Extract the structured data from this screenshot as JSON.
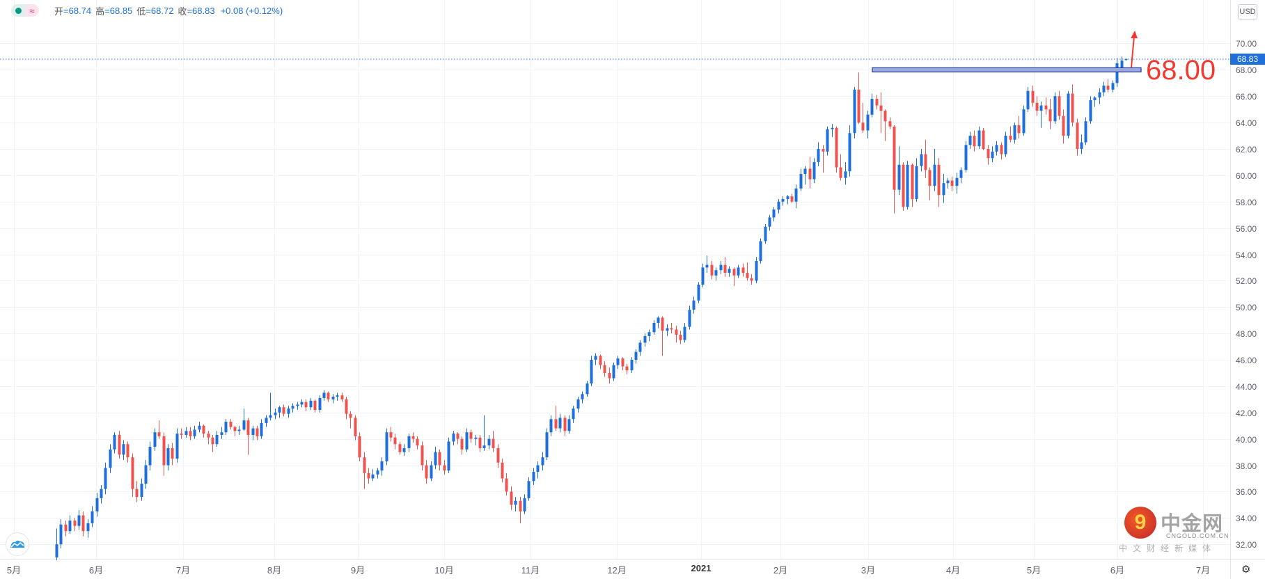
{
  "legend": {
    "open_label": "开",
    "open": "=68.74",
    "high_label": "高",
    "high": "=68.85",
    "low_label": "低",
    "low": "=68.72",
    "close_label": "收",
    "close": "=68.83",
    "change": "+0.08 (+0.12%)",
    "icons": [
      "status-dot-icon",
      "approx-icon"
    ]
  },
  "currency": "USD",
  "last_price": "68.83",
  "annotation": {
    "text": "68.00",
    "level": 68.0,
    "color": "#f23b30"
  },
  "watermark": {
    "name": "中金网",
    "url": "CNGOLD.COM.CN",
    "tagline": "中文财经新媒体"
  },
  "colors": {
    "up": "#1e6fd9",
    "down": "#ef5350",
    "grid": "#f0f3fa",
    "zone_fill": "#9fa8da",
    "zone_border": "#1a3a9a"
  },
  "chart_data": {
    "type": "candlestick",
    "ylim": [
      30.9,
      73.3
    ],
    "y_ticks": [
      "32.00",
      "34.00",
      "36.00",
      "38.00",
      "40.00",
      "42.00",
      "44.00",
      "46.00",
      "48.00",
      "50.00",
      "52.00",
      "54.00",
      "56.00",
      "58.00",
      "60.00",
      "62.00",
      "64.00",
      "66.00",
      "68.00",
      "70.00"
    ],
    "x_ticks": [
      "5月",
      "6月",
      "7月",
      "8月",
      "9月",
      "10月",
      "11月",
      "12月",
      "2021",
      "2月",
      "3月",
      "4月",
      "5月",
      "6月",
      "7月"
    ],
    "grid": true,
    "candles_ohlc": [
      [
        31.0,
        33.2,
        30.8,
        32.0
      ],
      [
        32.0,
        33.9,
        31.7,
        33.5
      ],
      [
        33.5,
        33.8,
        32.6,
        33.0
      ],
      [
        33.0,
        34.2,
        32.8,
        33.8
      ],
      [
        33.8,
        34.0,
        33.0,
        33.4
      ],
      [
        33.4,
        34.6,
        33.1,
        34.2
      ],
      [
        34.2,
        34.5,
        32.6,
        33.0
      ],
      [
        33.0,
        33.9,
        32.5,
        33.6
      ],
      [
        33.6,
        34.9,
        33.3,
        34.5
      ],
      [
        34.5,
        35.9,
        34.1,
        35.5
      ],
      [
        35.5,
        36.5,
        35.1,
        36.2
      ],
      [
        36.2,
        38.2,
        35.8,
        37.8
      ],
      [
        37.8,
        39.6,
        37.4,
        39.2
      ],
      [
        39.2,
        40.5,
        38.9,
        40.3
      ],
      [
        40.3,
        40.6,
        38.5,
        38.8
      ],
      [
        38.8,
        39.9,
        38.4,
        39.6
      ],
      [
        39.6,
        39.8,
        38.2,
        38.6
      ],
      [
        38.6,
        38.9,
        35.6,
        36.2
      ],
      [
        36.2,
        36.8,
        35.2,
        35.6
      ],
      [
        35.6,
        37.0,
        35.3,
        36.6
      ],
      [
        36.6,
        38.4,
        36.2,
        38.0
      ],
      [
        38.0,
        39.8,
        37.6,
        39.4
      ],
      [
        39.4,
        40.8,
        39.1,
        40.5
      ],
      [
        40.5,
        41.4,
        40.0,
        40.2
      ],
      [
        40.2,
        40.5,
        37.2,
        38.0
      ],
      [
        38.0,
        39.6,
        37.6,
        39.3
      ],
      [
        39.3,
        39.7,
        38.0,
        38.5
      ],
      [
        38.5,
        40.8,
        38.2,
        40.4
      ],
      [
        40.4,
        40.8,
        40.0,
        40.3
      ],
      [
        40.3,
        40.9,
        40.1,
        40.6
      ],
      [
        40.6,
        40.9,
        39.9,
        40.2
      ],
      [
        40.2,
        41.0,
        40.0,
        40.7
      ],
      [
        40.7,
        41.3,
        40.5,
        41.0
      ],
      [
        41.0,
        41.1,
        40.1,
        40.4
      ],
      [
        40.4,
        40.6,
        39.6,
        40.1
      ],
      [
        40.1,
        40.3,
        39.0,
        39.6
      ],
      [
        39.6,
        40.6,
        39.4,
        40.3
      ],
      [
        40.3,
        40.9,
        40.0,
        40.5
      ],
      [
        40.5,
        41.5,
        40.3,
        41.3
      ],
      [
        41.3,
        41.5,
        40.7,
        40.9
      ],
      [
        40.9,
        41.0,
        40.2,
        40.6
      ],
      [
        40.6,
        41.0,
        40.3,
        40.7
      ],
      [
        40.7,
        42.3,
        40.6,
        41.4
      ],
      [
        41.4,
        41.6,
        38.8,
        40.3
      ],
      [
        40.3,
        41.0,
        39.9,
        40.8
      ],
      [
        40.8,
        41.0,
        39.9,
        40.2
      ],
      [
        40.2,
        41.5,
        40.0,
        41.2
      ],
      [
        41.2,
        41.8,
        40.9,
        41.6
      ],
      [
        41.6,
        43.5,
        41.4,
        41.8
      ],
      [
        41.8,
        42.3,
        41.5,
        42.0
      ],
      [
        42.0,
        42.5,
        41.6,
        42.4
      ],
      [
        42.4,
        42.6,
        41.7,
        41.9
      ],
      [
        41.9,
        42.5,
        41.6,
        42.3
      ],
      [
        42.3,
        42.7,
        42.0,
        42.5
      ],
      [
        42.5,
        42.8,
        42.2,
        42.6
      ],
      [
        42.6,
        43.0,
        42.4,
        42.8
      ],
      [
        42.8,
        43.0,
        42.1,
        42.4
      ],
      [
        42.4,
        43.1,
        42.2,
        42.9
      ],
      [
        42.9,
        43.0,
        42.0,
        42.2
      ],
      [
        42.2,
        43.3,
        42.0,
        43.1
      ],
      [
        43.1,
        43.7,
        42.9,
        43.5
      ],
      [
        43.5,
        43.6,
        42.8,
        43.0
      ],
      [
        43.0,
        43.4,
        42.7,
        43.2
      ],
      [
        43.2,
        43.5,
        42.9,
        43.3
      ],
      [
        43.3,
        43.5,
        42.8,
        43.0
      ],
      [
        43.0,
        43.2,
        41.5,
        41.9
      ],
      [
        41.9,
        42.1,
        40.8,
        41.6
      ],
      [
        41.6,
        41.8,
        39.9,
        40.2
      ],
      [
        40.2,
        40.5,
        38.3,
        38.6
      ],
      [
        38.6,
        39.0,
        36.2,
        37.4
      ],
      [
        37.4,
        37.8,
        36.6,
        37.0
      ],
      [
        37.0,
        37.7,
        36.8,
        37.3
      ],
      [
        37.3,
        37.8,
        37.0,
        37.6
      ],
      [
        37.6,
        38.6,
        37.2,
        38.3
      ],
      [
        38.3,
        40.8,
        38.0,
        40.5
      ],
      [
        40.5,
        40.9,
        39.8,
        40.1
      ],
      [
        40.1,
        40.4,
        39.2,
        39.6
      ],
      [
        39.6,
        39.8,
        38.8,
        39.0
      ],
      [
        39.0,
        39.6,
        38.7,
        39.3
      ],
      [
        39.3,
        40.4,
        39.0,
        40.2
      ],
      [
        40.2,
        40.5,
        39.7,
        40.0
      ],
      [
        40.0,
        40.2,
        39.2,
        39.5
      ],
      [
        39.5,
        39.8,
        37.6,
        38.0
      ],
      [
        38.0,
        38.4,
        36.6,
        37.0
      ],
      [
        37.0,
        38.3,
        36.8,
        38.0
      ],
      [
        38.0,
        39.4,
        37.7,
        39.0
      ],
      [
        39.0,
        39.2,
        37.6,
        38.0
      ],
      [
        38.0,
        38.4,
        37.3,
        37.6
      ],
      [
        37.6,
        40.1,
        37.4,
        39.8
      ],
      [
        39.8,
        40.6,
        39.5,
        40.4
      ],
      [
        40.4,
        40.5,
        39.6,
        40.0
      ],
      [
        40.0,
        40.2,
        38.8,
        39.2
      ],
      [
        39.2,
        40.8,
        39.0,
        40.5
      ],
      [
        40.5,
        40.7,
        39.7,
        40.0
      ],
      [
        40.0,
        40.3,
        39.5,
        40.1
      ],
      [
        40.1,
        40.3,
        39.0,
        39.3
      ],
      [
        39.3,
        41.8,
        39.1,
        39.5
      ],
      [
        39.5,
        40.3,
        39.2,
        40.0
      ],
      [
        40.0,
        40.6,
        39.0,
        39.3
      ],
      [
        39.3,
        39.6,
        37.8,
        38.2
      ],
      [
        38.2,
        38.5,
        36.7,
        37.0
      ],
      [
        37.0,
        37.4,
        35.7,
        36.0
      ],
      [
        36.0,
        36.4,
        34.6,
        35.0
      ],
      [
        35.0,
        35.6,
        34.5,
        35.3
      ],
      [
        35.3,
        35.6,
        33.6,
        34.5
      ],
      [
        34.5,
        35.8,
        34.3,
        35.5
      ],
      [
        35.5,
        37.1,
        35.3,
        36.8
      ],
      [
        36.8,
        37.8,
        36.5,
        37.5
      ],
      [
        37.5,
        38.3,
        37.0,
        38.0
      ],
      [
        38.0,
        39.0,
        37.6,
        38.6
      ],
      [
        38.6,
        40.8,
        38.4,
        40.5
      ],
      [
        40.5,
        41.8,
        40.2,
        41.5
      ],
      [
        41.5,
        42.5,
        40.6,
        40.8
      ],
      [
        40.8,
        41.9,
        40.5,
        41.6
      ],
      [
        41.6,
        41.8,
        40.2,
        40.6
      ],
      [
        40.6,
        41.8,
        40.4,
        41.5
      ],
      [
        41.5,
        42.5,
        41.2,
        42.3
      ],
      [
        42.3,
        43.2,
        42.0,
        43.0
      ],
      [
        43.0,
        43.6,
        42.7,
        43.4
      ],
      [
        43.4,
        44.4,
        43.2,
        44.2
      ],
      [
        44.2,
        46.3,
        44.0,
        46.0
      ],
      [
        46.0,
        46.5,
        45.6,
        46.3
      ],
      [
        46.3,
        46.4,
        45.3,
        45.6
      ],
      [
        45.6,
        45.9,
        44.7,
        45.0
      ],
      [
        45.0,
        45.4,
        44.2,
        44.6
      ],
      [
        44.6,
        45.8,
        44.4,
        45.6
      ],
      [
        45.6,
        46.3,
        45.3,
        46.1
      ],
      [
        46.1,
        46.2,
        45.2,
        45.5
      ],
      [
        45.5,
        45.7,
        44.9,
        45.2
      ],
      [
        45.2,
        46.2,
        45.0,
        46.0
      ],
      [
        46.0,
        46.8,
        45.7,
        46.6
      ],
      [
        46.6,
        47.5,
        46.3,
        47.3
      ],
      [
        47.3,
        48.0,
        47.0,
        47.8
      ],
      [
        47.8,
        48.3,
        47.4,
        48.1
      ],
      [
        48.1,
        49.0,
        47.9,
        48.8
      ],
      [
        48.8,
        49.3,
        48.4,
        49.2
      ],
      [
        49.2,
        49.3,
        46.3,
        48.2
      ],
      [
        48.2,
        48.7,
        47.8,
        48.4
      ],
      [
        48.4,
        48.8,
        48.0,
        48.3
      ],
      [
        48.3,
        48.6,
        47.3,
        47.9
      ],
      [
        47.9,
        48.2,
        47.2,
        47.5
      ],
      [
        47.5,
        48.8,
        47.3,
        48.5
      ],
      [
        48.5,
        50.1,
        48.3,
        49.8
      ],
      [
        49.8,
        50.8,
        49.5,
        50.5
      ],
      [
        50.5,
        51.9,
        50.3,
        51.7
      ],
      [
        51.7,
        53.3,
        51.5,
        53.0
      ],
      [
        53.0,
        53.9,
        52.6,
        53.2
      ],
      [
        53.2,
        53.5,
        52.1,
        52.4
      ],
      [
        52.4,
        53.0,
        52.0,
        52.8
      ],
      [
        52.8,
        53.5,
        52.5,
        53.2
      ],
      [
        53.2,
        53.8,
        52.3,
        52.6
      ],
      [
        52.6,
        53.1,
        52.3,
        52.9
      ],
      [
        52.9,
        53.0,
        51.6,
        52.4
      ],
      [
        52.4,
        53.2,
        52.2,
        53.0
      ],
      [
        53.0,
        53.3,
        52.3,
        52.6
      ],
      [
        52.6,
        53.4,
        52.0,
        52.2
      ],
      [
        52.2,
        52.5,
        51.7,
        52.0
      ],
      [
        52.0,
        53.8,
        51.8,
        53.5
      ],
      [
        53.5,
        55.2,
        53.3,
        55.0
      ],
      [
        55.0,
        56.3,
        54.8,
        56.1
      ],
      [
        56.1,
        57.0,
        55.8,
        56.8
      ],
      [
        56.8,
        57.6,
        56.5,
        57.4
      ],
      [
        57.4,
        58.2,
        57.1,
        58.0
      ],
      [
        58.0,
        58.4,
        57.7,
        58.2
      ],
      [
        58.2,
        58.5,
        57.8,
        58.4
      ],
      [
        58.4,
        58.6,
        57.9,
        58.0
      ],
      [
        58.0,
        59.3,
        57.5,
        59.0
      ],
      [
        59.0,
        60.5,
        58.8,
        60.1
      ],
      [
        60.1,
        60.7,
        59.3,
        60.5
      ],
      [
        60.5,
        61.4,
        59.0,
        59.7
      ],
      [
        59.7,
        61.3,
        59.4,
        61.0
      ],
      [
        61.0,
        62.5,
        60.7,
        62.0
      ],
      [
        62.0,
        62.3,
        60.2,
        61.8
      ],
      [
        61.8,
        63.7,
        61.5,
        63.5
      ],
      [
        63.5,
        63.9,
        62.9,
        63.6
      ],
      [
        63.6,
        63.7,
        60.2,
        60.6
      ],
      [
        60.6,
        61.6,
        59.6,
        59.8
      ],
      [
        59.8,
        61.0,
        59.3,
        60.3
      ],
      [
        60.3,
        63.8,
        59.9,
        63.2
      ],
      [
        63.2,
        66.7,
        62.8,
        66.5
      ],
      [
        66.5,
        67.8,
        63.9,
        64.0
      ],
      [
        64.0,
        65.5,
        63.2,
        63.4
      ],
      [
        63.4,
        64.9,
        62.8,
        64.6
      ],
      [
        64.6,
        66.2,
        64.4,
        65.8
      ],
      [
        65.8,
        66.1,
        65.0,
        65.3
      ],
      [
        65.3,
        66.3,
        63.2,
        64.9
      ],
      [
        64.9,
        65.0,
        62.6,
        64.1
      ],
      [
        64.1,
        64.4,
        63.5,
        63.7
      ],
      [
        63.7,
        63.8,
        57.1,
        58.9
      ],
      [
        58.9,
        62.2,
        58.5,
        60.8
      ],
      [
        60.8,
        61.0,
        57.3,
        57.6
      ],
      [
        57.6,
        61.1,
        57.4,
        60.8
      ],
      [
        60.8,
        60.9,
        57.6,
        58.2
      ],
      [
        58.2,
        61.3,
        58.0,
        60.7
      ],
      [
        60.7,
        62.0,
        60.3,
        61.6
      ],
      [
        61.6,
        62.7,
        59.8,
        60.4
      ],
      [
        60.4,
        60.6,
        58.1,
        59.2
      ],
      [
        59.2,
        62.0,
        58.8,
        60.8
      ],
      [
        60.8,
        61.3,
        57.6,
        58.5
      ],
      [
        58.5,
        60.1,
        57.9,
        59.4
      ],
      [
        59.4,
        59.8,
        59.0,
        59.6
      ],
      [
        59.6,
        59.9,
        58.8,
        59.2
      ],
      [
        59.2,
        60.2,
        58.6,
        59.8
      ],
      [
        59.8,
        60.6,
        59.4,
        60.4
      ],
      [
        60.4,
        62.6,
        60.2,
        62.3
      ],
      [
        62.3,
        63.3,
        62.0,
        63.0
      ],
      [
        63.0,
        63.4,
        61.8,
        62.2
      ],
      [
        62.2,
        63.7,
        62.0,
        63.4
      ],
      [
        63.4,
        63.6,
        61.9,
        62.0
      ],
      [
        62.0,
        62.3,
        60.8,
        61.3
      ],
      [
        61.3,
        62.2,
        61.0,
        61.8
      ],
      [
        61.8,
        62.6,
        61.5,
        62.3
      ],
      [
        62.3,
        62.5,
        61.2,
        61.6
      ],
      [
        61.6,
        63.3,
        61.4,
        63.0
      ],
      [
        63.0,
        63.7,
        62.5,
        62.7
      ],
      [
        62.7,
        64.0,
        62.4,
        63.8
      ],
      [
        63.8,
        64.5,
        62.8,
        63.2
      ],
      [
        63.2,
        65.3,
        63.0,
        65.0
      ],
      [
        65.0,
        66.7,
        64.8,
        66.4
      ],
      [
        66.4,
        66.8,
        65.2,
        65.5
      ],
      [
        65.5,
        66.0,
        64.5,
        64.9
      ],
      [
        64.9,
        65.6,
        63.6,
        65.3
      ],
      [
        65.3,
        65.9,
        64.6,
        65.0
      ],
      [
        65.0,
        65.8,
        63.5,
        64.1
      ],
      [
        64.1,
        66.3,
        63.9,
        66.0
      ],
      [
        66.0,
        66.4,
        64.2,
        64.5
      ],
      [
        64.5,
        65.0,
        62.4,
        63.0
      ],
      [
        63.0,
        66.4,
        62.8,
        66.2
      ],
      [
        66.2,
        66.9,
        63.7,
        64.0
      ],
      [
        64.0,
        64.3,
        61.5,
        62.0
      ],
      [
        62.0,
        63.1,
        61.6,
        62.5
      ],
      [
        62.5,
        64.4,
        62.3,
        64.1
      ],
      [
        64.1,
        66.0,
        63.9,
        65.7
      ],
      [
        65.7,
        66.0,
        65.2,
        65.9
      ],
      [
        65.9,
        66.6,
        65.4,
        66.3
      ],
      [
        66.3,
        67.1,
        66.0,
        66.8
      ],
      [
        66.8,
        67.3,
        66.3,
        66.5
      ],
      [
        66.5,
        67.2,
        66.3,
        67.0
      ],
      [
        67.0,
        68.9,
        66.7,
        68.5
      ],
      [
        68.0,
        69.0,
        67.8,
        68.7
      ],
      [
        68.74,
        68.85,
        68.72,
        68.83
      ]
    ]
  }
}
